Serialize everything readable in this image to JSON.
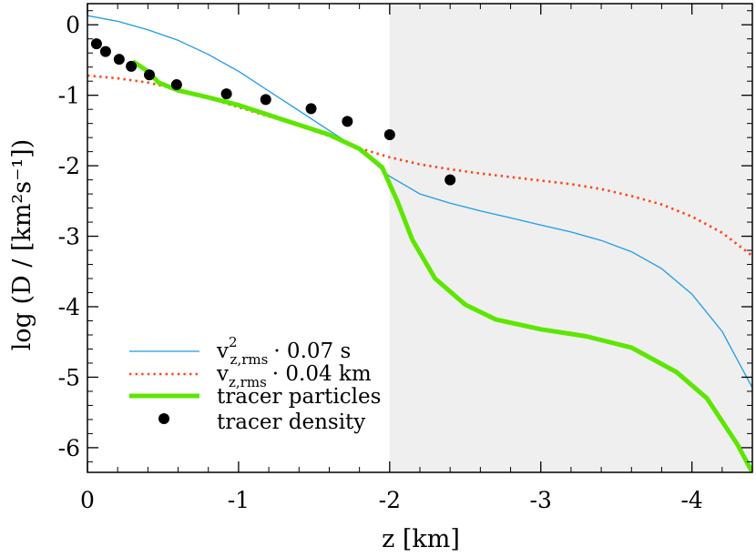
{
  "chart_data": {
    "type": "line",
    "xlabel": "z [km]",
    "ylabel": "log (D / [km²s⁻¹])",
    "xlim": [
      0,
      -4.4
    ],
    "ylim": [
      -6.35,
      0.3
    ],
    "x_ticks": [
      0,
      -1,
      -2,
      -3,
      -4
    ],
    "x_tick_labels": [
      "0",
      "-1",
      "-2",
      "-3",
      "-4"
    ],
    "y_ticks": [
      0,
      -1,
      -2,
      -3,
      -4,
      -5,
      -6
    ],
    "y_tick_labels": [
      "0",
      "-1",
      "-2",
      "-3",
      "-4",
      "-5",
      "-6"
    ],
    "shaded_region": {
      "x_from": -2.0,
      "x_to": -4.4,
      "color": "#efefef"
    },
    "grid": false,
    "legend_position": "bottom-left",
    "series": [
      {
        "name": "v²z,rms · 0.07 s",
        "name_parts": {
          "var": "v",
          "sup": "2",
          "sub": "z,rms",
          "suffix": "· 0.07 s"
        },
        "style": "line",
        "color": "#1e9be6",
        "x": [
          0,
          -0.2,
          -0.4,
          -0.6,
          -0.8,
          -1.0,
          -1.2,
          -1.4,
          -1.6,
          -1.8,
          -2.0,
          -2.2,
          -2.4,
          -2.6,
          -2.8,
          -3.0,
          -3.2,
          -3.4,
          -3.6,
          -3.8,
          -4.0,
          -4.2,
          -4.4
        ],
        "y": [
          0.13,
          0.05,
          -0.07,
          -0.22,
          -0.42,
          -0.66,
          -0.94,
          -1.22,
          -1.5,
          -1.78,
          -2.15,
          -2.4,
          -2.53,
          -2.64,
          -2.74,
          -2.84,
          -2.94,
          -3.06,
          -3.22,
          -3.46,
          -3.82,
          -4.35,
          -5.15
        ]
      },
      {
        "name": "vz,rms · 0.04 km",
        "name_parts": {
          "var": "v",
          "sup": "",
          "sub": "z,rms",
          "suffix": "· 0.04 km"
        },
        "style": "dotted",
        "color": "#ff4513",
        "x": [
          0,
          -0.2,
          -0.4,
          -0.6,
          -0.8,
          -1.0,
          -1.2,
          -1.4,
          -1.6,
          -1.8,
          -2.0,
          -2.2,
          -2.4,
          -2.6,
          -2.8,
          -3.0,
          -3.2,
          -3.4,
          -3.6,
          -3.8,
          -4.0,
          -4.2,
          -4.4
        ],
        "y": [
          -0.72,
          -0.76,
          -0.82,
          -0.92,
          -1.04,
          -1.17,
          -1.3,
          -1.43,
          -1.58,
          -1.75,
          -1.88,
          -1.98,
          -2.05,
          -2.11,
          -2.16,
          -2.21,
          -2.26,
          -2.33,
          -2.43,
          -2.55,
          -2.72,
          -2.95,
          -3.28
        ]
      },
      {
        "name": "tracer particles",
        "style": "thick-line",
        "color": "#5de600",
        "x": [
          -0.3,
          -0.4,
          -0.47,
          -0.6,
          -0.8,
          -1.0,
          -1.2,
          -1.4,
          -1.6,
          -1.8,
          -1.95,
          -2.05,
          -2.15,
          -2.3,
          -2.5,
          -2.7,
          -3.0,
          -3.3,
          -3.6,
          -3.9,
          -4.1,
          -4.3,
          -4.4
        ],
        "y": [
          -0.52,
          -0.66,
          -0.82,
          -0.93,
          -1.03,
          -1.14,
          -1.28,
          -1.42,
          -1.56,
          -1.76,
          -2.02,
          -2.5,
          -3.05,
          -3.6,
          -3.97,
          -4.18,
          -4.32,
          -4.42,
          -4.58,
          -4.93,
          -5.3,
          -5.95,
          -6.35
        ]
      },
      {
        "name": "tracer density",
        "style": "points",
        "color": "#000000",
        "x": [
          -0.06,
          -0.12,
          -0.21,
          -0.29,
          -0.41,
          -0.59,
          -0.92,
          -1.18,
          -1.48,
          -1.72,
          -2.0,
          -2.4
        ],
        "y": [
          -0.27,
          -0.38,
          -0.49,
          -0.59,
          -0.71,
          -0.85,
          -0.98,
          -1.06,
          -1.19,
          -1.37,
          -1.56,
          -2.2
        ]
      }
    ]
  }
}
